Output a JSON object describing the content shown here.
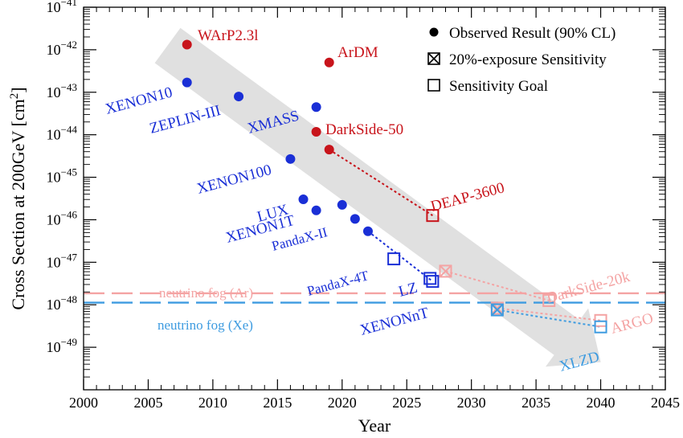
{
  "chart_data": {
    "type": "scatter",
    "title": "",
    "xlabel": "Year",
    "ylabel_main": "Cross Section at 200GeV [cm",
    "ylabel_sup": "2",
    "ylabel_end": "]",
    "xlim": [
      2000,
      2045
    ],
    "ylim_exp": [
      -50,
      -41
    ],
    "y_scale": "log",
    "x_ticks": [
      "2000",
      "2005",
      "2010",
      "2015",
      "2020",
      "2025",
      "2030",
      "2035",
      "2040",
      "2045"
    ],
    "y_ticks": [
      {
        "base": "10",
        "exp": "−49",
        "value": -49
      },
      {
        "base": "10",
        "exp": "−48",
        "value": -48
      },
      {
        "base": "10",
        "exp": "−47",
        "value": -47
      },
      {
        "base": "10",
        "exp": "−46",
        "value": -46
      },
      {
        "base": "10",
        "exp": "−45",
        "value": -45
      },
      {
        "base": "10",
        "exp": "−44",
        "value": -44
      },
      {
        "base": "10",
        "exp": "−43",
        "value": -43
      },
      {
        "base": "10",
        "exp": "−42",
        "value": -42
      },
      {
        "base": "10",
        "exp": "−41",
        "value": -41
      }
    ],
    "legend": {
      "position": "top-right",
      "entries": [
        {
          "marker": "filled-circle",
          "label": "Observed Result (90% CL)"
        },
        {
          "marker": "crossed-square",
          "label": "20%-exposure Sensitivity"
        },
        {
          "marker": "open-square",
          "label": "Sensitivity Goal"
        }
      ]
    },
    "colors": {
      "xenon": "#1a2fd6",
      "argon": "#c8141b",
      "argon_future": "#f4a3a3",
      "xenon_future": "#3d9be0",
      "arrow": "#e0e0e0"
    },
    "fog_lines": [
      {
        "label": "neutrino fog (Ar)",
        "value_log10": -47.73,
        "color": "#f4a3a3"
      },
      {
        "label": "neutrino fog (Xe)",
        "value_log10": -47.95,
        "color": "#3d9be0"
      }
    ],
    "trend_arrow": {
      "from": [
        2006.5,
        -41.9
      ],
      "to": [
        2040,
        -49.35
      ]
    },
    "observed": [
      {
        "name": "WArP2.3l",
        "x": 2008,
        "y_log10": -41.88,
        "color": "#c8141b"
      },
      {
        "name": "ArDM",
        "x": 2019,
        "y_log10": -42.3,
        "color": "#c8141b"
      },
      {
        "name": "DarkSide-50",
        "x": 2018,
        "y_log10": -43.93,
        "color": "#c8141b"
      },
      {
        "name": "",
        "x": 2019,
        "y_log10": -44.35,
        "color": "#c8141b"
      },
      {
        "name": "XENON10",
        "x": 2008,
        "y_log10": -42.77,
        "color": "#1a2fd6"
      },
      {
        "name": "ZEPLIN-III",
        "x": 2012,
        "y_log10": -43.1,
        "color": "#1a2fd6"
      },
      {
        "name": "XMASS",
        "x": 2018,
        "y_log10": -43.35,
        "color": "#1a2fd6"
      },
      {
        "name": "XENON100",
        "x": 2016,
        "y_log10": -44.57,
        "color": "#1a2fd6"
      },
      {
        "name": "LUX",
        "x": 2017,
        "y_log10": -45.52,
        "color": "#1a2fd6"
      },
      {
        "name": "XENON1T",
        "x": 2018,
        "y_log10": -45.78,
        "color": "#1a2fd6"
      },
      {
        "name": "",
        "x": 2020,
        "y_log10": -45.65,
        "color": "#1a2fd6"
      },
      {
        "name": "PandaX-II",
        "x": 2021,
        "y_log10": -45.98,
        "color": "#1a2fd6"
      },
      {
        "name": "",
        "x": 2022,
        "y_log10": -46.27,
        "color": "#1a2fd6"
      }
    ],
    "crossed": [
      {
        "name": "",
        "x": 2028,
        "y_log10": -47.21,
        "color": "#f4a3a3"
      },
      {
        "name": "",
        "x": 2032,
        "y_log10": -48.08,
        "color": "#f4a3a3"
      },
      {
        "name": "",
        "x": 2032,
        "y_log10": -48.12,
        "color": "#3d9be0"
      }
    ],
    "goals": [
      {
        "name": "DEAP-3600",
        "x": 2027,
        "y_log10": -45.9,
        "color": "#c8141b"
      },
      {
        "name": "PandaX-4T",
        "x": 2024,
        "y_log10": -46.92,
        "color": "#1a2fd6"
      },
      {
        "name": "LZ",
        "x": 2026.8,
        "y_log10": -47.38,
        "color": "#1a2fd6"
      },
      {
        "name": "XENONnT",
        "x": 2027,
        "y_log10": -47.45,
        "color": "#1a2fd6"
      },
      {
        "name": "DarkSide-20k",
        "x": 2036,
        "y_log10": -47.9,
        "color": "#f4a3a3"
      },
      {
        "name": "ARGO",
        "x": 2040,
        "y_log10": -48.37,
        "color": "#f4a3a3"
      },
      {
        "name": "XLZD",
        "x": 2040,
        "y_log10": -48.52,
        "color": "#3d9be0"
      }
    ],
    "connectors": [
      {
        "color": "#c8141b",
        "points": [
          [
            2019,
            -44.35
          ],
          [
            2027,
            -45.9
          ]
        ]
      },
      {
        "color": "#1a2fd6",
        "points": [
          [
            2022,
            -46.27
          ],
          [
            2027,
            -47.45
          ]
        ]
      },
      {
        "color": "#f4a3a3",
        "points": [
          [
            2028,
            -47.21
          ],
          [
            2036,
            -47.9
          ]
        ]
      },
      {
        "color": "#f4a3a3",
        "points": [
          [
            2032,
            -48.08
          ],
          [
            2040,
            -48.37
          ]
        ]
      },
      {
        "color": "#3d9be0",
        "points": [
          [
            2032,
            -48.12
          ],
          [
            2040,
            -48.52
          ]
        ]
      }
    ]
  }
}
